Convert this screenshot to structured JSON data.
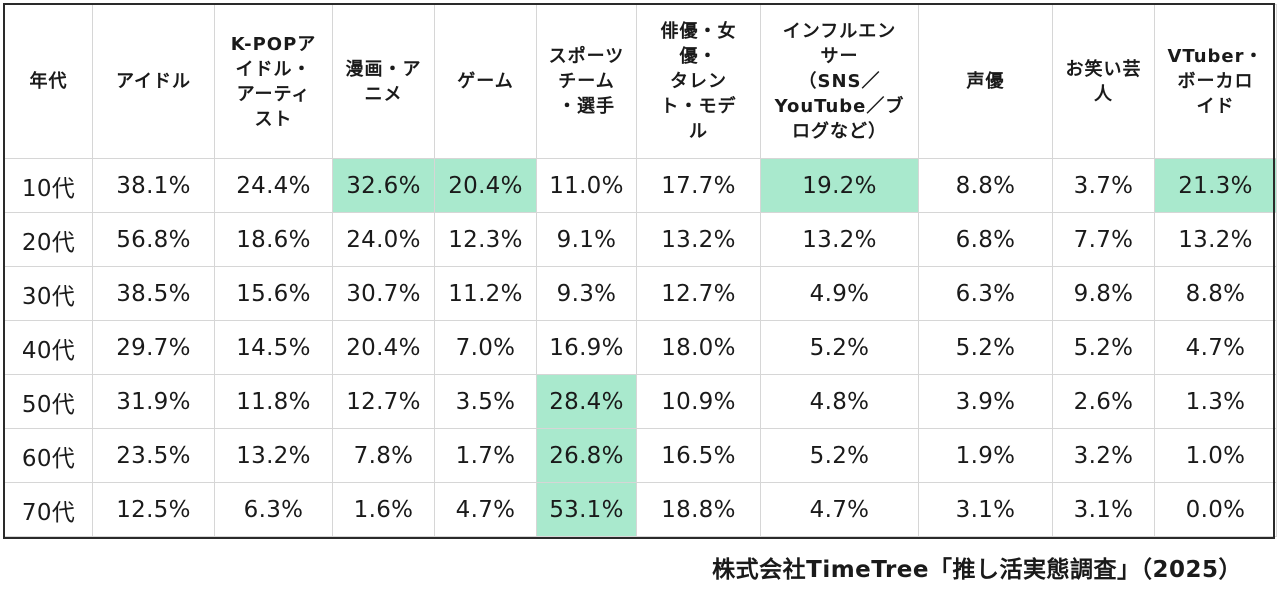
{
  "table": {
    "headers": [
      "年代",
      "アイドル",
      "K-POPア\nイドル・\nアーティ\nスト",
      "漫画・ア\nニメ",
      "ゲーム",
      "スポーツ\nチーム\n・選手",
      "俳優・女\n優・\nタレン\nト・モデ\nル",
      "インフルエン\nサー\n（SNS／\nYouTube／ブ\nログなど）",
      "声優",
      "お笑い芸\n人",
      "VTuber・\nボーカロ\nイド"
    ],
    "rows": [
      {
        "age": "10代",
        "values": [
          "38.1%",
          "24.4%",
          "32.6%",
          "20.4%",
          "11.0%",
          "17.7%",
          "19.2%",
          "8.8%",
          "3.7%",
          "21.3%"
        ]
      },
      {
        "age": "20代",
        "values": [
          "56.8%",
          "18.6%",
          "24.0%",
          "12.3%",
          "9.1%",
          "13.2%",
          "13.2%",
          "6.8%",
          "7.7%",
          "13.2%"
        ]
      },
      {
        "age": "30代",
        "values": [
          "38.5%",
          "15.6%",
          "30.7%",
          "11.2%",
          "9.3%",
          "12.7%",
          "4.9%",
          "6.3%",
          "9.8%",
          "8.8%"
        ]
      },
      {
        "age": "40代",
        "values": [
          "29.7%",
          "14.5%",
          "20.4%",
          "7.0%",
          "16.9%",
          "18.0%",
          "5.2%",
          "5.2%",
          "5.2%",
          "4.7%"
        ]
      },
      {
        "age": "50代",
        "values": [
          "31.9%",
          "11.8%",
          "12.7%",
          "3.5%",
          "28.4%",
          "10.9%",
          "4.8%",
          "3.9%",
          "2.6%",
          "1.3%"
        ]
      },
      {
        "age": "60代",
        "values": [
          "23.5%",
          "13.2%",
          "7.8%",
          "1.7%",
          "26.8%",
          "16.5%",
          "5.2%",
          "1.9%",
          "3.2%",
          "1.0%"
        ]
      },
      {
        "age": "70代",
        "values": [
          "12.5%",
          "6.3%",
          "1.6%",
          "4.7%",
          "53.1%",
          "18.8%",
          "4.7%",
          "3.1%",
          "3.1%",
          "0.0%"
        ]
      }
    ],
    "highlighted_cells": [
      [
        0,
        2
      ],
      [
        0,
        3
      ],
      [
        0,
        6
      ],
      [
        0,
        9
      ],
      [
        4,
        4
      ],
      [
        5,
        4
      ],
      [
        6,
        4
      ]
    ],
    "highlight_color": "#a9e9cd"
  },
  "source": "株式会社TimeTree「推し活実態調査」（2025）"
}
